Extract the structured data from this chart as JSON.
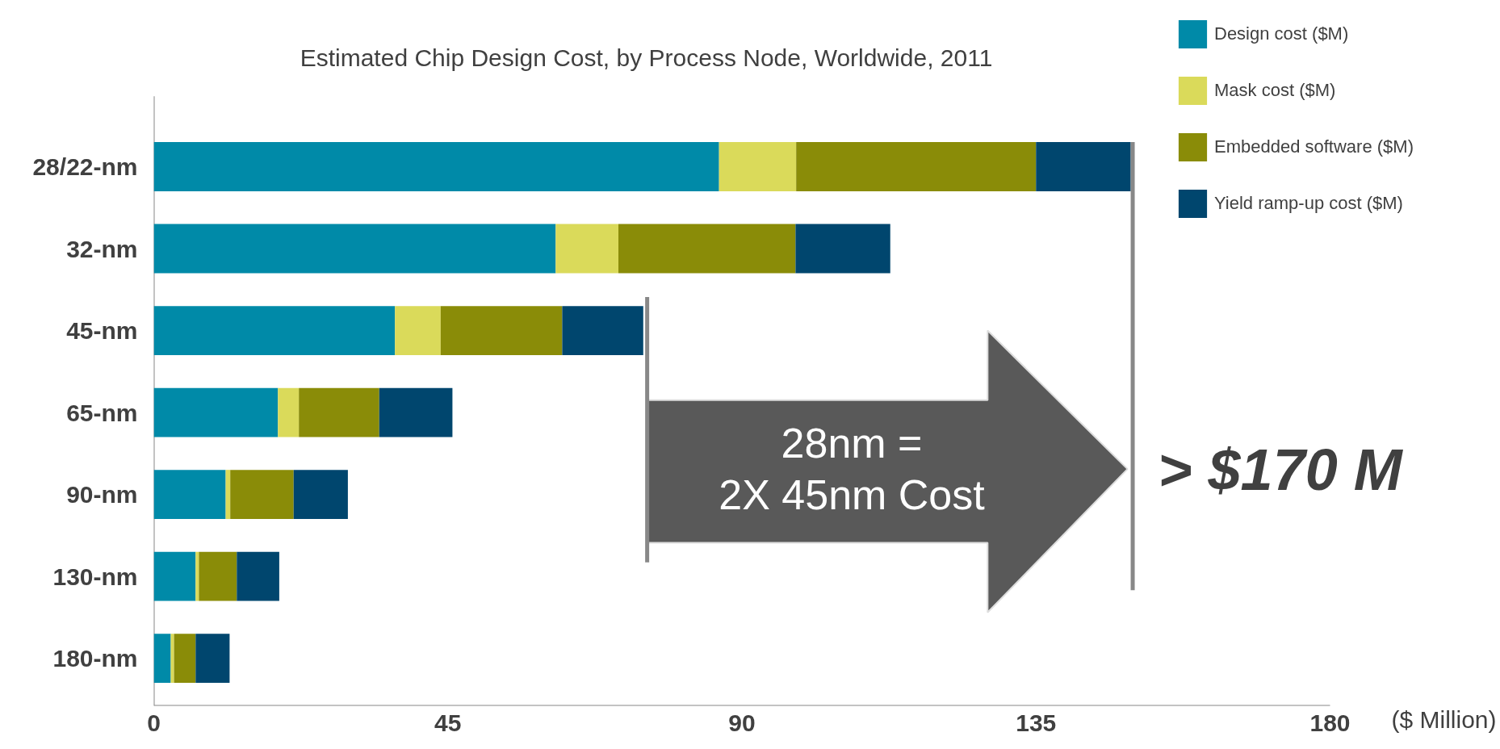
{
  "chart_data": {
    "type": "bar",
    "orientation": "horizontal",
    "stacked": true,
    "title": "Estimated Chip Design Cost, by Process Node, Worldwide, 2011",
    "xlabel": "($ Million)",
    "categories": [
      "28/22-nm",
      "32-nm",
      "45-nm",
      "65-nm",
      "90-nm",
      "130-nm",
      "180-nm"
    ],
    "series": [
      {
        "name": "Design cost ($M)",
        "color": "#008aa8",
        "values": [
          86.5,
          61.5,
          36.9,
          19.0,
          11.0,
          6.4,
          2.6
        ]
      },
      {
        "name": "Mask cost ($M)",
        "color": "#dada5a",
        "values": [
          11.8,
          9.6,
          7.0,
          3.2,
          0.7,
          0.5,
          0.5
        ]
      },
      {
        "name": "Embedded software ($M)",
        "color": "#8a8c08",
        "values": [
          36.7,
          27.1,
          18.6,
          12.3,
          9.7,
          5.8,
          3.3
        ]
      },
      {
        "name": "Yield ramp-up cost ($M)",
        "color": "#00466e",
        "values": [
          14.5,
          14.5,
          12.4,
          11.2,
          8.3,
          6.5,
          5.2
        ]
      }
    ],
    "ref_lines": [
      {
        "axis": "x",
        "value": 75.5,
        "color": "#888888"
      },
      {
        "axis": "x",
        "value": 149.8,
        "color": "#888888"
      }
    ],
    "xlim": [
      0,
      180
    ],
    "xticks": [
      0,
      45,
      90,
      135,
      180
    ],
    "grid": false,
    "legend": "top right",
    "annotations": [
      "28nm =\n2X 45nm Cost",
      "> $170 M"
    ]
  }
}
